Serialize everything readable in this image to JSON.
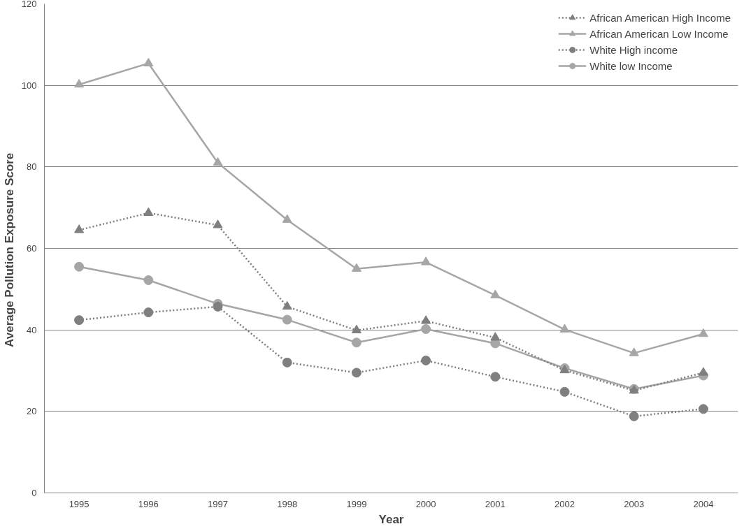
{
  "chart_data": {
    "type": "line",
    "xlabel": "Year",
    "ylabel": "Average  Pollution Exposure Score",
    "categories": [
      "1995",
      "1996",
      "1997",
      "1998",
      "1999",
      "2000",
      "2001",
      "2002",
      "2003",
      "2004"
    ],
    "ylim": [
      0,
      120
    ],
    "yticks": [
      0,
      20,
      40,
      60,
      80,
      100,
      120
    ],
    "grid": "y",
    "legend": "top right",
    "series": [
      {
        "name": "African American High Income",
        "color": "#7f7f7f",
        "marker": "triangle",
        "line_style": "dotted",
        "values": [
          64.5,
          68.7,
          65.7,
          45.7,
          39.9,
          42.2,
          38.1,
          30.1,
          25.1,
          29.5
        ]
      },
      {
        "name": "African American Low Income",
        "color": "#a6a6a6",
        "marker": "triangle",
        "line_style": "solid",
        "values": [
          100.2,
          105.4,
          81.0,
          67.0,
          55.0,
          56.6,
          48.5,
          40.1,
          34.3,
          39.0
        ]
      },
      {
        "name": "White High income",
        "color": "#7f7f7f",
        "marker": "circle",
        "line_style": "dotted",
        "values": [
          42.4,
          44.3,
          45.7,
          32.0,
          29.5,
          32.5,
          28.5,
          24.8,
          18.8,
          20.6
        ]
      },
      {
        "name": "White low Income",
        "color": "#a6a6a6",
        "marker": "circle",
        "line_style": "solid",
        "values": [
          55.5,
          52.2,
          46.4,
          42.5,
          36.9,
          40.2,
          36.7,
          30.6,
          25.5,
          28.8
        ]
      }
    ]
  }
}
